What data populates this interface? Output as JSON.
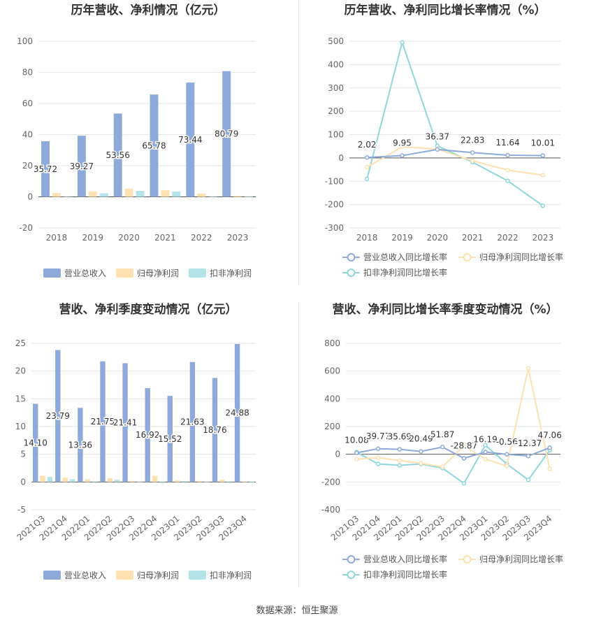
{
  "source_note": "数据来源：恒生聚源",
  "colors": {
    "revenue": "#8eaadb",
    "net_profit": "#fde1b0",
    "deducted_profit": "#b4e4e8",
    "revenue_line": "#8eaadb",
    "net_profit_line": "#fde1b0",
    "deducted_line": "#8fd7dc"
  },
  "chart_data": [
    {
      "type": "bar",
      "title": "历年营收、净利情况（亿元）",
      "categories": [
        "2018",
        "2019",
        "2020",
        "2021",
        "2022",
        "2023"
      ],
      "ylim": [
        -20,
        100
      ],
      "yticks": [
        100,
        80,
        60,
        40,
        20,
        0,
        -20
      ],
      "grid": true,
      "legend_position": "bottom",
      "series": [
        {
          "name": "营业总收入",
          "values": [
            35.72,
            39.27,
            53.56,
            65.78,
            73.44,
            80.79
          ],
          "labels": [
            "35.72",
            "39.27",
            "53.56",
            "65.78",
            "73.44",
            "80.79"
          ]
        },
        {
          "name": "归母净利润",
          "values": [
            2.4,
            3.5,
            5.2,
            4.2,
            2.1,
            0.6
          ]
        },
        {
          "name": "扣非净利润",
          "values": [
            0.2,
            2.3,
            3.8,
            3.4,
            0.1,
            0.2
          ]
        }
      ]
    },
    {
      "type": "line",
      "title": "历年营收、净利同比增长率情况（%）",
      "categories": [
        "2018",
        "2019",
        "2020",
        "2021",
        "2022",
        "2023"
      ],
      "ylim": [
        -300,
        500
      ],
      "yticks": [
        500,
        400,
        300,
        200,
        100,
        0,
        -100,
        -200,
        -300
      ],
      "grid": true,
      "legend_position": "bottom",
      "series": [
        {
          "name": "营业总收入同比增长率",
          "values": [
            2.02,
            9.95,
            36.37,
            22.83,
            11.64,
            10.01
          ],
          "labels": [
            "2.02",
            "9.95",
            "36.37",
            "22.83",
            "11.64",
            "10.01"
          ]
        },
        {
          "name": "归母净利润同比增长率",
          "values": [
            -40,
            48,
            38,
            -12,
            -52,
            -74
          ]
        },
        {
          "name": "扣非净利润同比增长率",
          "values": [
            -90,
            495,
            52,
            -18,
            -98,
            -205
          ]
        }
      ]
    },
    {
      "type": "bar",
      "title": "营收、净利季度变动情况（亿元）",
      "categories": [
        "2021Q3",
        "2021Q4",
        "2022Q1",
        "2022Q2",
        "2022Q3",
        "2022Q4",
        "2023Q1",
        "2023Q2",
        "2023Q3",
        "2023Q4"
      ],
      "ylim": [
        -5,
        25
      ],
      "yticks": [
        25,
        20,
        15,
        10,
        5,
        0,
        -5
      ],
      "grid": true,
      "legend_position": "bottom",
      "series": [
        {
          "name": "营业总收入",
          "values": [
            14.1,
            23.79,
            13.36,
            21.75,
            21.41,
            16.92,
            15.52,
            21.63,
            18.76,
            24.88
          ],
          "labels": [
            "14.10",
            "23.79",
            "13.36",
            "21.75",
            "21.41",
            "16.92",
            "15.52",
            "21.63",
            "18.76",
            "24.88"
          ]
        },
        {
          "name": "归母净利润",
          "values": [
            1.1,
            0.8,
            0.5,
            0.7,
            0.2,
            1.1,
            0.3,
            0.2,
            0.4,
            0.1
          ]
        },
        {
          "name": "扣非净利润",
          "values": [
            0.9,
            0.5,
            0.1,
            0.4,
            0.05,
            -0.2,
            0.15,
            0.05,
            0.1,
            -0.1
          ]
        }
      ]
    },
    {
      "type": "line",
      "title": "营收、净利同比增长率季度变动情况（%）",
      "categories": [
        "2021Q3",
        "2021Q4",
        "2022Q1",
        "2022Q2",
        "2022Q3",
        "2022Q4",
        "2023Q1",
        "2023Q2",
        "2023Q3",
        "2023Q4"
      ],
      "ylim": [
        -400,
        800
      ],
      "yticks": [
        800,
        600,
        400,
        200,
        0,
        -200,
        -400
      ],
      "grid": true,
      "legend_position": "bottom",
      "series": [
        {
          "name": "营业总收入同比增长率",
          "values": [
            10.08,
            39.77,
            35.69,
            20.49,
            51.87,
            -28.87,
            16.19,
            -0.56,
            -12.37,
            47.06
          ],
          "labels": [
            "10.08",
            "39.77",
            "35.69",
            "20.49",
            "51.87",
            "-28.87",
            "16.19",
            "-0.56",
            "-12.37",
            "47.06"
          ]
        },
        {
          "name": "归母净利润同比增长率",
          "values": [
            -35,
            -25,
            -45,
            -65,
            -90,
            60,
            -35,
            -85,
            620,
            -105
          ]
        },
        {
          "name": "扣非净利润同比增长率",
          "values": [
            15,
            -70,
            -80,
            -70,
            -100,
            -210,
            65,
            -70,
            -185,
            30
          ]
        }
      ]
    }
  ]
}
